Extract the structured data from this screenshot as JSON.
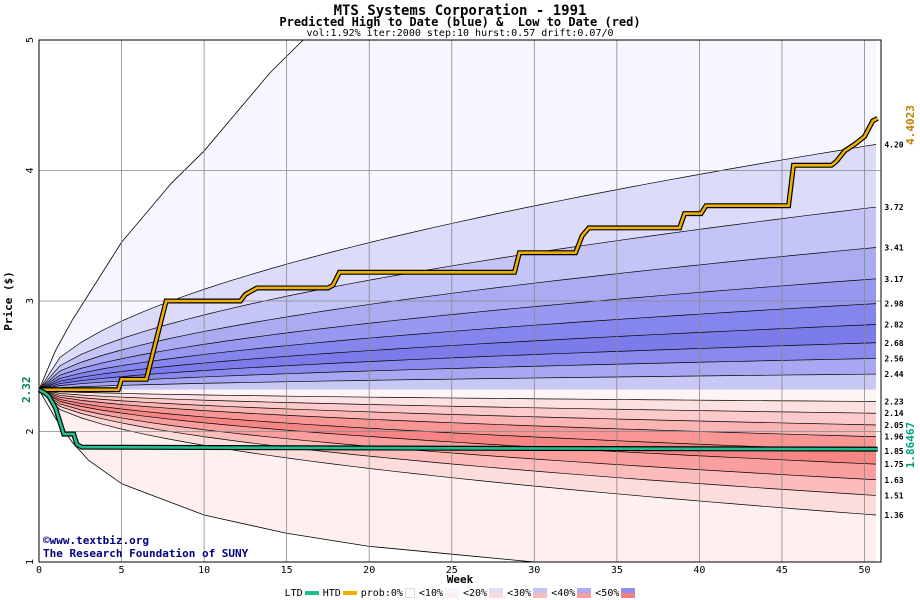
{
  "chart_data": {
    "type": "area",
    "title": "MTS Systems Corporation - 1991",
    "subtitle": "Predicted High to Date (blue) &  Low to Date (red)",
    "params": "vol:1.92% iter:2000 step:10 hurst:0.57 drift:0.07/0",
    "xlabel": "Week",
    "ylabel": "Price ($)",
    "xlim": [
      0,
      51
    ],
    "ylim": [
      1,
      5
    ],
    "x_ticks": [
      0,
      5,
      10,
      15,
      20,
      25,
      30,
      35,
      40,
      45,
      50
    ],
    "y_ticks": [
      1,
      2,
      3,
      4,
      5
    ],
    "grid": true,
    "start_price": 2.32,
    "start_label": "2.32",
    "high_end_label": "4.4023",
    "low_end_label": "1.86467",
    "percentile_levels_high": [
      "4.20",
      "3.72",
      "3.41",
      "3.17",
      "2.98",
      "2.82",
      "2.68",
      "2.56",
      "2.44"
    ],
    "percentile_levels_low": [
      "2.23",
      "2.14",
      "2.05",
      "1.96",
      "1.85",
      "1.75",
      "1.63",
      "1.51",
      "1.36"
    ],
    "high_envelope": [
      {
        "x": 0,
        "y": 2.32
      },
      {
        "x": 1,
        "y": 2.62
      },
      {
        "x": 2,
        "y": 2.85
      },
      {
        "x": 3,
        "y": 3.05
      },
      {
        "x": 5,
        "y": 3.45
      },
      {
        "x": 8,
        "y": 3.9
      },
      {
        "x": 10,
        "y": 4.15
      },
      {
        "x": 12,
        "y": 4.45
      },
      {
        "x": 14,
        "y": 4.75
      },
      {
        "x": 16,
        "y": 5.0
      }
    ],
    "low_envelope": [
      {
        "x": 0,
        "y": 2.32
      },
      {
        "x": 1,
        "y": 2.1
      },
      {
        "x": 2,
        "y": 1.92
      },
      {
        "x": 3,
        "y": 1.78
      },
      {
        "x": 5,
        "y": 1.6
      },
      {
        "x": 10,
        "y": 1.36
      },
      {
        "x": 15,
        "y": 1.22
      },
      {
        "x": 20,
        "y": 1.12
      },
      {
        "x": 25,
        "y": 1.06
      },
      {
        "x": 30,
        "y": 1.0
      }
    ],
    "series": [
      {
        "name": "HTD",
        "color": "#f0b000",
        "points": [
          {
            "x": 0,
            "y": 2.32
          },
          {
            "x": 4.8,
            "y": 2.32
          },
          {
            "x": 5,
            "y": 2.4
          },
          {
            "x": 6.5,
            "y": 2.4
          },
          {
            "x": 7,
            "y": 2.65
          },
          {
            "x": 7.7,
            "y": 3.0
          },
          {
            "x": 12.2,
            "y": 3.0
          },
          {
            "x": 12.5,
            "y": 3.05
          },
          {
            "x": 13.2,
            "y": 3.1
          },
          {
            "x": 17.5,
            "y": 3.1
          },
          {
            "x": 17.8,
            "y": 3.12
          },
          {
            "x": 18.2,
            "y": 3.22
          },
          {
            "x": 28.8,
            "y": 3.22
          },
          {
            "x": 29.1,
            "y": 3.37
          },
          {
            "x": 32.5,
            "y": 3.37
          },
          {
            "x": 32.9,
            "y": 3.5
          },
          {
            "x": 33.3,
            "y": 3.56
          },
          {
            "x": 38.8,
            "y": 3.56
          },
          {
            "x": 39.1,
            "y": 3.67
          },
          {
            "x": 40.1,
            "y": 3.67
          },
          {
            "x": 40.4,
            "y": 3.73
          },
          {
            "x": 45.4,
            "y": 3.73
          },
          {
            "x": 45.7,
            "y": 4.04
          },
          {
            "x": 48.0,
            "y": 4.04
          },
          {
            "x": 48.3,
            "y": 4.07
          },
          {
            "x": 48.8,
            "y": 4.15
          },
          {
            "x": 49.4,
            "y": 4.2
          },
          {
            "x": 50.0,
            "y": 4.26
          },
          {
            "x": 50.5,
            "y": 4.38
          },
          {
            "x": 50.8,
            "y": 4.4
          }
        ]
      },
      {
        "name": "LTD",
        "color": "#1ec090",
        "points": [
          {
            "x": 0,
            "y": 2.32
          },
          {
            "x": 0.3,
            "y": 2.3
          },
          {
            "x": 0.6,
            "y": 2.27
          },
          {
            "x": 1.0,
            "y": 2.18
          },
          {
            "x": 1.5,
            "y": 1.98
          },
          {
            "x": 2.1,
            "y": 1.98
          },
          {
            "x": 2.3,
            "y": 1.9
          },
          {
            "x": 2.6,
            "y": 1.88
          },
          {
            "x": 30,
            "y": 1.87
          },
          {
            "x": 50.8,
            "y": 1.865
          }
        ]
      }
    ],
    "legend": {
      "ltd_label": "LTD",
      "htd_label": "HTD",
      "prob_label": "prob:0%",
      "bins": [
        "<10%",
        "<20%",
        "<30%",
        "<40%",
        "<50%"
      ],
      "colors": [
        "#f6f6fe",
        "#dcdcfa",
        "#c4c4f6",
        "#ababf2",
        "#8f8fee"
      ]
    }
  },
  "credit": {
    "line1": "www.textbiz.org",
    "line2": "The Research Foundation of SUNY",
    "icon": "copyright-icon"
  }
}
